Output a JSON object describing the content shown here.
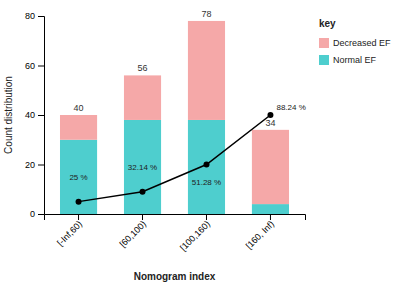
{
  "chart_data": {
    "type": "bar",
    "stacked": true,
    "categories": [
      "[-Inf,60)",
      "[60,100)",
      "[100,160)",
      "[160, Inf)"
    ],
    "series": [
      {
        "name": "Normal EF",
        "color": "#4ECECE",
        "values": [
          30,
          38,
          38,
          4
        ]
      },
      {
        "name": "Decreased EF",
        "color": "#F5A8A8",
        "values": [
          10,
          18,
          40,
          30
        ]
      },
      {
        "type": "line",
        "color": "black",
        "marker": "circle",
        "values": [
          5,
          9,
          20,
          40
        ]
      }
    ],
    "totals": [
      40,
      56,
      78,
      34
    ],
    "annotations": [
      "25 %",
      "32.14 %",
      "51.28 %",
      "88.24 %"
    ],
    "x_label": "Nomogram index",
    "y_label": "Count distribution",
    "legend_title": "key",
    "legend": "right",
    "ylim": [
      0,
      80
    ],
    "yticks": [
      0,
      20,
      40,
      60,
      80
    ],
    "grid": false
  }
}
